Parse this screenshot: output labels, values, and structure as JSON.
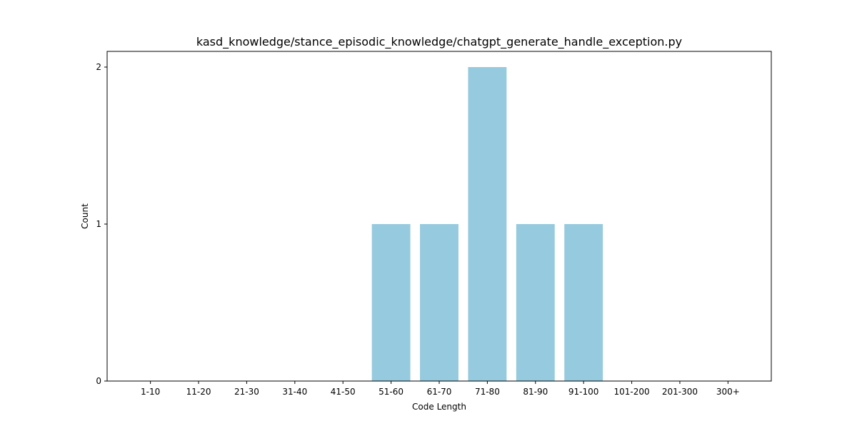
{
  "chart_data": {
    "type": "bar",
    "title": "kasd_knowledge/stance_episodic_knowledge/chatgpt_generate_handle_exception.py",
    "xlabel": "Code Length",
    "ylabel": "Count",
    "categories": [
      "1-10",
      "11-20",
      "21-30",
      "31-40",
      "41-50",
      "51-60",
      "61-70",
      "71-80",
      "81-90",
      "91-100",
      "101-200",
      "201-300",
      "300+"
    ],
    "values": [
      0,
      0,
      0,
      0,
      0,
      1,
      1,
      2,
      1,
      1,
      0,
      0,
      0
    ],
    "ylim": [
      0,
      2.1
    ],
    "yticks": [
      0,
      1,
      2
    ],
    "grid": false,
    "bar_color": "#96cade"
  }
}
